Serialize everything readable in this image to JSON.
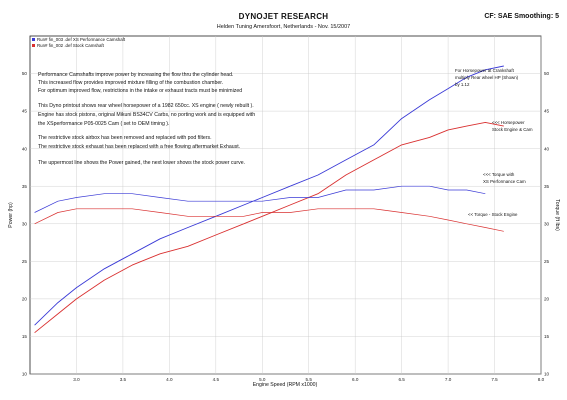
{
  "header": {
    "title": "DYNOJET RESEARCH",
    "subtitle": "Helden Tuning  Amersfoort, Netherlands  - Nov. 15/2007",
    "cf_label": "CF: SAE  Smoothing: 5"
  },
  "legend": [
    {
      "label": "Run# fin_003 .def XS Performance Camshaft",
      "color": "#3a3ad6"
    },
    {
      "label": "Run# fin_002 .def Stock Camshaft",
      "color": "#d93030"
    }
  ],
  "notes": [
    "Performance Camshafts improve power by increasing the flow thru the cylinder head.",
    "This increased flow provides improved mixture filling of the combustion chamber.",
    "For optimum improved flow, restrictions in the intake or exhaust tracts must be minimized",
    "This Dyno printout shows rear wheel horsepower of a 1982 650cc. XS engine ( newly rebuilt ).",
    "Engine has stock pistons, original Mikuni BS34CV Carbs, no porting work and is equipped with",
    "the XSperformance P05-0025 Cam ( set to OEM timing ).",
    "The restrictive stock airbox has been removed and replaced with pod filters.",
    "The restrictive stock exhaust has been replaced with a free flowing aftermarket Exhaust.",
    "The uppermost line shows the Power gained, the next lower shows the stock power curve."
  ],
  "annotations": {
    "crankshaft_1": "For Horsepower at Crankshaft",
    "crankshaft_2": "multiply Rear wheel HP (Shown)",
    "crankshaft_3": "by 1.12",
    "hp_stock_1": "<<< Horsepower",
    "hp_stock_2": "Stock Engine & Cam",
    "torque_xs_1": "<<< Torque with",
    "torque_xs_2": "XS Performance Cam",
    "torque_stock": "<< Torque - Stock Engine"
  },
  "chart_data": {
    "type": "line",
    "title": "DYNOJET RESEARCH",
    "xlabel": "Engine Speed (RPM x1000)",
    "ylabel": "Power (hp)",
    "y2label": "Torque (ft lbs)",
    "xlim": [
      2.5,
      8.0
    ],
    "ylim": [
      10,
      55
    ],
    "y2lim": [
      10,
      55
    ],
    "x_ticks": [
      "3.0",
      "3.5",
      "4.0",
      "4.5",
      "5.0",
      "5.5",
      "6.0",
      "6.5",
      "7.0",
      "7.5",
      "8.0"
    ],
    "y_ticks": [
      "10",
      "15",
      "20",
      "25",
      "30",
      "35",
      "40",
      "45",
      "50"
    ],
    "y2_ticks": [
      "10",
      "15",
      "20",
      "25",
      "30",
      "35",
      "40",
      "45",
      "50"
    ],
    "grid": true,
    "series": [
      {
        "name": "Run# fin_003 .def XS Performance Camshaft",
        "kind": "power",
        "color": "#3a3ad6",
        "x": [
          2.55,
          2.8,
          3.0,
          3.3,
          3.6,
          3.9,
          4.2,
          4.5,
          4.8,
          5.0,
          5.3,
          5.6,
          5.9,
          6.2,
          6.5,
          6.8,
          7.0,
          7.2,
          7.4,
          7.6
        ],
        "y": [
          16.5,
          19.5,
          21.5,
          24.0,
          26.0,
          28.0,
          29.5,
          31.0,
          32.5,
          33.5,
          35.0,
          36.5,
          38.5,
          40.5,
          44.0,
          46.5,
          48.0,
          49.5,
          50.5,
          51.0
        ]
      },
      {
        "name": "Run# fin_002 .def Stock Camshaft",
        "kind": "power",
        "color": "#d93030",
        "x": [
          2.55,
          2.8,
          3.0,
          3.3,
          3.6,
          3.9,
          4.2,
          4.5,
          4.8,
          5.0,
          5.3,
          5.6,
          5.9,
          6.2,
          6.5,
          6.8,
          7.0,
          7.2,
          7.4,
          7.6
        ],
        "y": [
          15.5,
          18.0,
          20.0,
          22.5,
          24.5,
          26.0,
          27.0,
          28.5,
          30.0,
          31.0,
          32.5,
          34.0,
          36.5,
          38.5,
          40.5,
          41.5,
          42.5,
          43.0,
          43.5,
          43.0
        ]
      },
      {
        "name": "Torque XS Performance Cam",
        "kind": "torque",
        "color": "#3a3ad6",
        "x": [
          2.55,
          2.8,
          3.0,
          3.3,
          3.6,
          3.9,
          4.2,
          4.5,
          4.8,
          5.0,
          5.3,
          5.6,
          5.9,
          6.2,
          6.5,
          6.8,
          7.0,
          7.2,
          7.4
        ],
        "y": [
          31.5,
          33.0,
          33.5,
          34.0,
          34.0,
          33.5,
          33.0,
          33.0,
          33.0,
          33.0,
          33.5,
          33.5,
          34.5,
          34.5,
          35.0,
          35.0,
          34.5,
          34.5,
          34.0
        ]
      },
      {
        "name": "Torque Stock Engine",
        "kind": "torque",
        "color": "#d93030",
        "x": [
          2.55,
          2.8,
          3.0,
          3.3,
          3.6,
          3.9,
          4.2,
          4.5,
          4.8,
          5.0,
          5.3,
          5.6,
          5.9,
          6.2,
          6.5,
          6.8,
          7.0,
          7.2,
          7.4,
          7.6
        ],
        "y": [
          30.0,
          31.5,
          32.0,
          32.0,
          32.0,
          31.5,
          31.0,
          31.0,
          31.0,
          31.5,
          31.5,
          32.0,
          32.0,
          32.0,
          31.5,
          31.0,
          30.5,
          30.0,
          29.5,
          29.0
        ]
      }
    ]
  }
}
